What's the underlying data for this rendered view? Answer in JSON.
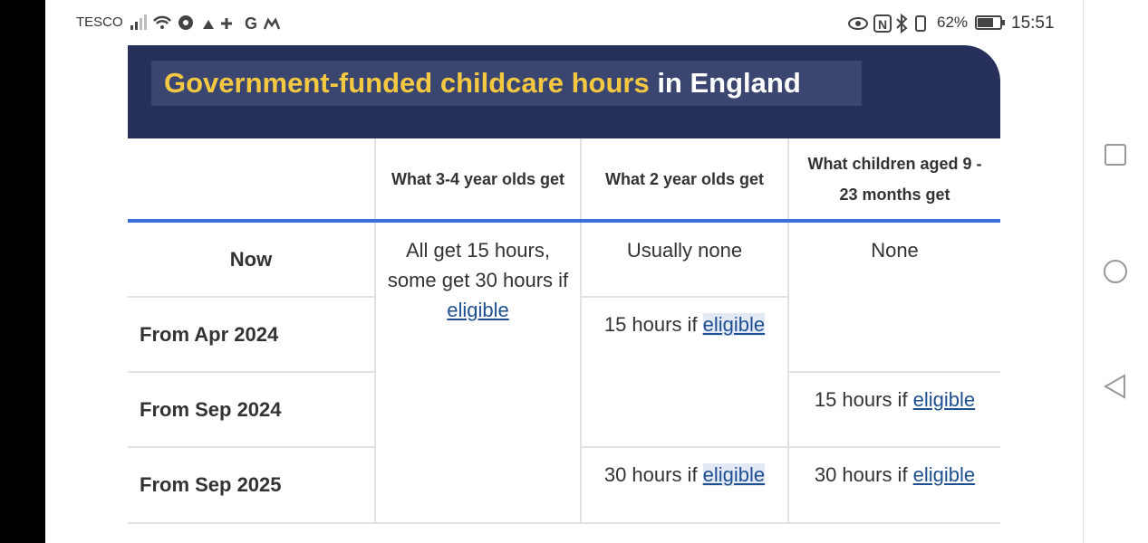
{
  "status_bar": {
    "carrier": "TESCO",
    "battery": "62%",
    "time": "15:51"
  },
  "header": {
    "title_highlight": "Government-funded childcare hours",
    "title_rest": " in England"
  },
  "table": {
    "columns": [
      "What 3-4 year olds get",
      "What 2 year olds get",
      "What children aged 9 - 23 months get"
    ],
    "rows": [
      "Now",
      "From Apr 2024",
      "From Sep 2024",
      "From Sep 2025"
    ],
    "cells": {
      "three_four": {
        "text": "All get 15 hours, some get 30 hours if ",
        "link": "eligible"
      },
      "two_now": {
        "text": "Usually none"
      },
      "two_2024": {
        "text": "15 hours if ",
        "link": "eligible"
      },
      "two_2025": {
        "text": "30 hours if ",
        "link": "eligible"
      },
      "infant_now": {
        "text": "None"
      },
      "infant_sep2024": {
        "text": "15 hours if ",
        "link": "eligible"
      },
      "infant_2025": {
        "text": "30 hours if ",
        "link": "eligible"
      }
    }
  }
}
